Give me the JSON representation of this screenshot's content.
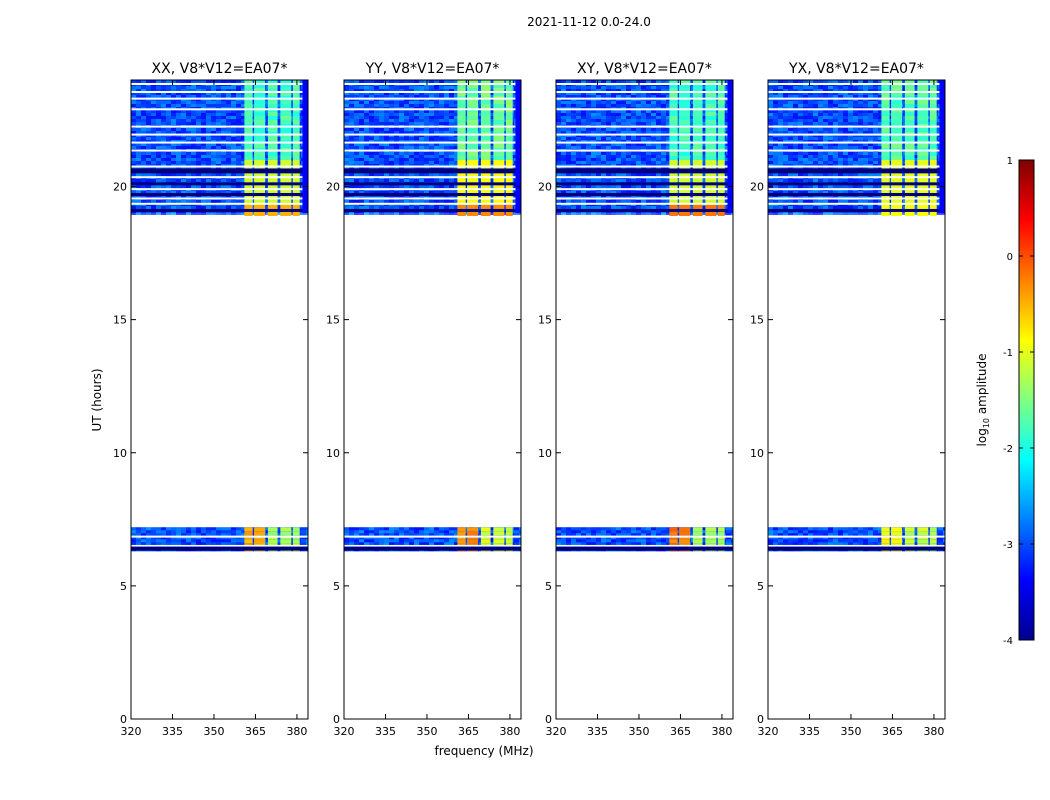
{
  "chart_data": {
    "type": "heatmap",
    "suptitle": "2021-11-12 0.0-24.0",
    "xlabel": "frequency (MHz)",
    "ylabel": "UT (hours)",
    "xticks": [
      320,
      335,
      350,
      365,
      380
    ],
    "yticks": [
      0,
      5,
      10,
      15,
      20
    ],
    "xlim": [
      320,
      384
    ],
    "ylim": [
      0,
      24
    ],
    "colorbar": {
      "label": "log10 amplitude",
      "label_base": "log",
      "label_sub": "10",
      "label_rest": " amplitude",
      "ticks": [
        1,
        0,
        -1,
        -2,
        -3,
        -4
      ],
      "range": [
        -4,
        1
      ],
      "colors": [
        "#00008f",
        "#0000ff",
        "#0080ff",
        "#00ffff",
        "#80ff80",
        "#ffff00",
        "#ff8000",
        "#ff0000",
        "#800000"
      ]
    },
    "panels": [
      {
        "title": "XX, V8*V12=EA07*",
        "band_level": -1.3,
        "hot_level": -0.5
      },
      {
        "title": "YY, V8*V12=EA07*",
        "band_level": -1.1,
        "hot_level": -0.3
      },
      {
        "title": "XY, V8*V12=EA07*",
        "band_level": -1.3,
        "hot_level": -0.2
      },
      {
        "title": "YX, V8*V12=EA07*",
        "band_level": -1.2,
        "hot_level": -0.9
      }
    ],
    "data_blocks": [
      {
        "t_start": 6.3,
        "t_end": 7.2,
        "background_level": -3.0
      },
      {
        "t_start": 19.0,
        "t_end": 24.0,
        "background_level": -3.0
      }
    ],
    "bright_channels_mhz": [
      [
        361,
        364
      ],
      [
        364.5,
        368.5
      ],
      [
        369.5,
        373
      ],
      [
        374,
        378
      ],
      [
        378.5,
        381
      ]
    ]
  }
}
